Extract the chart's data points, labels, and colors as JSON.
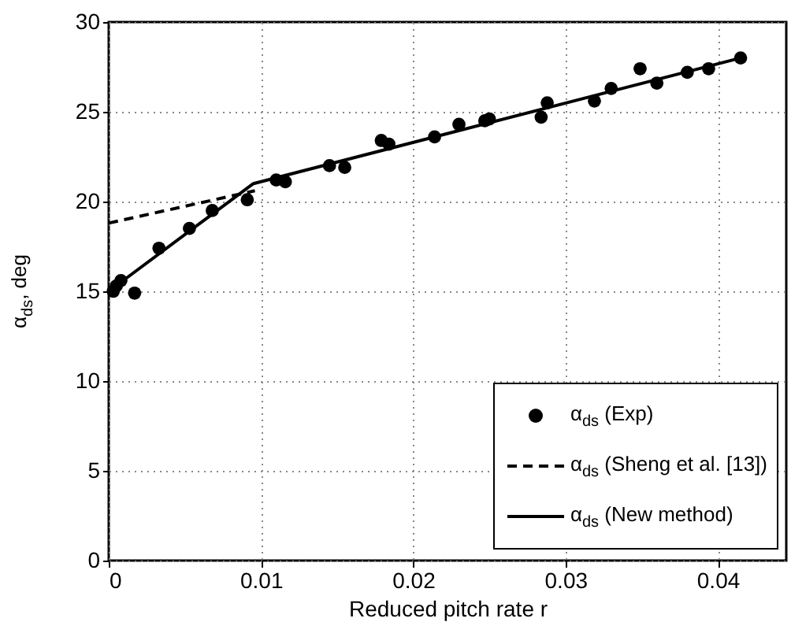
{
  "chart_data": {
    "type": "scatter",
    "xlabel": "Reduced pitch rate r",
    "ylabel": "α$_{ds}$, deg",
    "xlim": [
      0,
      0.0445
    ],
    "ylim": [
      0,
      30
    ],
    "xticks": [
      0,
      0.01,
      0.02,
      0.03,
      0.04
    ],
    "yticks": [
      0,
      5,
      10,
      15,
      20,
      25,
      30
    ],
    "grid": true,
    "legend": "bottom right",
    "series": [
      {
        "name": "α$_{ds}$ (Exp)",
        "marker": "circle",
        "color": "#000000",
        "x": [
          0.0003,
          0.0005,
          0.0008,
          0.0017,
          0.0033,
          0.0053,
          0.0068,
          0.0091,
          0.011,
          0.0116,
          0.0145,
          0.0155,
          0.0179,
          0.0184,
          0.0214,
          0.023,
          0.0247,
          0.025,
          0.0284,
          0.0288,
          0.0319,
          0.033,
          0.0349,
          0.036,
          0.038,
          0.0394,
          0.0415
        ],
        "values": [
          15.0,
          15.3,
          15.6,
          14.9,
          17.4,
          18.5,
          19.5,
          20.1,
          21.2,
          21.1,
          22.0,
          21.9,
          23.4,
          23.2,
          23.6,
          24.3,
          24.5,
          24.6,
          24.7,
          25.5,
          25.6,
          26.3,
          27.4,
          26.6,
          27.2,
          27.4,
          28.0
        ]
      },
      {
        "name": "α$_{ds}$ (Sheng et al. [13])",
        "type": "line",
        "line_style": "dashed",
        "color": "#000000",
        "x": [
          0,
          0.0096
        ],
        "values": [
          18.8,
          20.6
        ]
      },
      {
        "name": "α$_{ds}$ (New method)",
        "type": "line",
        "line_style": "solid",
        "color": "#000000",
        "x": [
          0,
          0.0095,
          0.0415
        ],
        "values": [
          15.0,
          21.0,
          28.0
        ]
      }
    ]
  }
}
